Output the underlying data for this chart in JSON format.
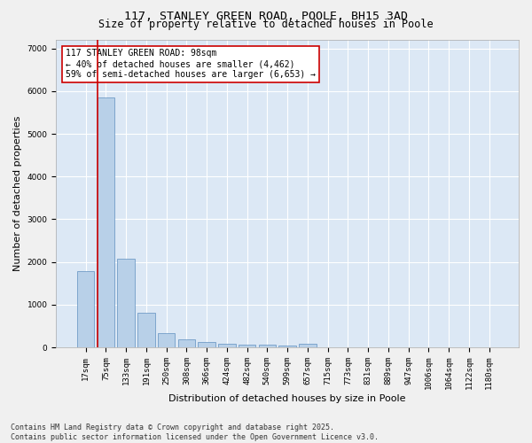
{
  "title_line1": "117, STANLEY GREEN ROAD, POOLE, BH15 3AD",
  "title_line2": "Size of property relative to detached houses in Poole",
  "xlabel": "Distribution of detached houses by size in Poole",
  "ylabel": "Number of detached properties",
  "categories": [
    "17sqm",
    "75sqm",
    "133sqm",
    "191sqm",
    "250sqm",
    "308sqm",
    "366sqm",
    "424sqm",
    "482sqm",
    "540sqm",
    "599sqm",
    "657sqm",
    "715sqm",
    "773sqm",
    "831sqm",
    "889sqm",
    "947sqm",
    "1006sqm",
    "1064sqm",
    "1122sqm",
    "1180sqm"
  ],
  "values": [
    1780,
    5850,
    2080,
    820,
    330,
    195,
    120,
    80,
    70,
    55,
    50,
    85,
    0,
    0,
    0,
    0,
    0,
    0,
    0,
    0,
    0
  ],
  "bar_color": "#b8d0e8",
  "bar_edge_color": "#6090c0",
  "vline_color": "#cc0000",
  "annotation_title": "117 STANLEY GREEN ROAD: 98sqm",
  "annotation_line2": "← 40% of detached houses are smaller (4,462)",
  "annotation_line3": "59% of semi-detached houses are larger (6,653) →",
  "annotation_box_color": "#cc0000",
  "annotation_bg": "#ffffff",
  "ylim": [
    0,
    7200
  ],
  "yticks": [
    0,
    1000,
    2000,
    3000,
    4000,
    5000,
    6000,
    7000
  ],
  "bg_color": "#dce8f5",
  "grid_color": "#ffffff",
  "footer_line1": "Contains HM Land Registry data © Crown copyright and database right 2025.",
  "footer_line2": "Contains public sector information licensed under the Open Government Licence v3.0.",
  "title_fontsize": 9.5,
  "subtitle_fontsize": 8.5,
  "tick_fontsize": 6.5,
  "label_fontsize": 8,
  "annotation_fontsize": 7,
  "footer_fontsize": 6
}
